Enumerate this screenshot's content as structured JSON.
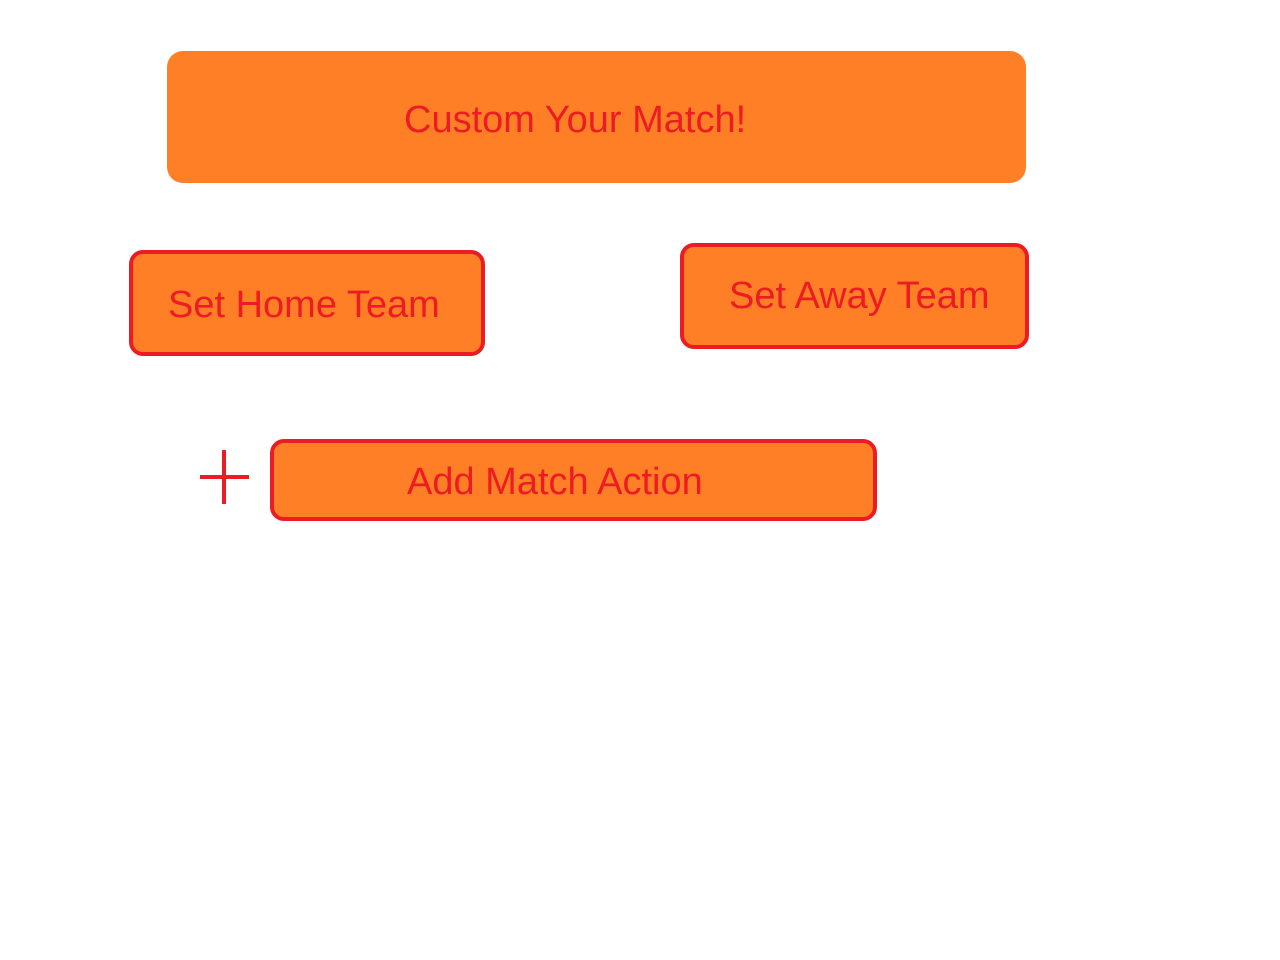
{
  "header": {
    "title": "Custom Your Match!"
  },
  "teams": {
    "home_label": "Set Home Team",
    "away_label": "Set Away Team"
  },
  "actions": {
    "add_icon": "plus-icon",
    "add_label": "Add Match Action"
  },
  "colors": {
    "accent_fill": "#ff7f27",
    "accent_text": "#ed1c24",
    "background": "#ffffff"
  }
}
